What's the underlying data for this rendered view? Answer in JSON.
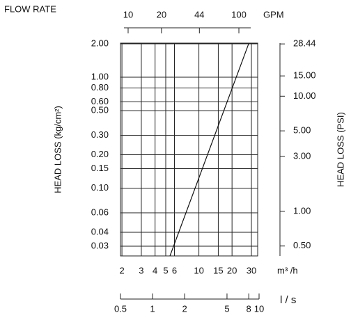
{
  "chart_data": {
    "type": "line",
    "title": "FLOW RATE",
    "log_scale": true,
    "grid": true,
    "x_label": "m³ /h",
    "xlim": [
      1.94,
      34.2
    ],
    "xticks": [
      2,
      3,
      4,
      5,
      6,
      10,
      15,
      20,
      30
    ],
    "y_label": "HEAD LOSS (kg/cm²)",
    "ylim": [
      0.0245,
      2.03
    ],
    "yticks": [
      {
        "value": 2,
        "label": "2.00"
      },
      {
        "value": 1,
        "label": "1.00"
      },
      {
        "value": 0.8,
        "label": "0.80"
      },
      {
        "value": 0.6,
        "label": "0.60"
      },
      {
        "value": 0.5,
        "label": "0.50"
      },
      {
        "value": 0.3,
        "label": "0.30"
      },
      {
        "value": 0.2,
        "label": "0.20"
      },
      0.15,
      {
        "value": 0.1,
        "label": "0.10"
      },
      0.06,
      0.04,
      0.03
    ],
    "y2_label": "HEAD LOSS (PSI)",
    "y2lim": [
      0.41,
      28.9
    ],
    "y2ticks": [
      28.44,
      {
        "value": 15,
        "label": "15.00"
      },
      {
        "value": 10,
        "label": "10.00"
      },
      {
        "value": 5,
        "label": "5.00"
      },
      {
        "value": 3,
        "label": "3.00"
      },
      {
        "value": 1,
        "label": "1.00"
      },
      {
        "value": 0.5,
        "label": "0.50"
      }
    ],
    "top_axis": {
      "label": "GPM",
      "lim": [
        8.53,
        147.8
      ],
      "ticks": [
        10,
        20,
        44,
        100
      ]
    },
    "bottom_axis2": {
      "label": "l / s",
      "lim": [
        0.5,
        10
      ],
      "ticks": [
        0.5,
        1,
        2,
        5,
        8,
        10
      ]
    },
    "series": [
      {
        "color": "#111111",
        "x": [
          5.46,
          28.3
        ],
        "values": [
          0.0245,
          2.0
        ]
      }
    ]
  }
}
